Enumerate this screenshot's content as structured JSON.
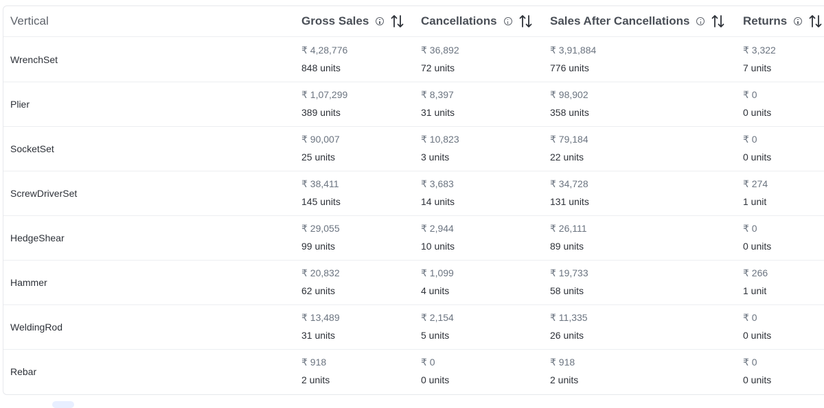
{
  "table": {
    "headers": {
      "vertical": "Vertical",
      "gross_sales": "Gross Sales",
      "cancellations": "Cancellations",
      "sales_after_cancellations": "Sales After Cancellations",
      "returns": "Returns"
    },
    "rows": [
      {
        "vertical": "WrenchSet",
        "gross_amount": "₹ 4,28,776",
        "gross_units": "848 units",
        "cancel_amount": "₹ 36,892",
        "cancel_units": "72 units",
        "after_amount": "₹ 3,91,884",
        "after_units": "776 units",
        "returns_amount": "₹ 3,322",
        "returns_units": "7 units"
      },
      {
        "vertical": "Plier",
        "gross_amount": "₹ 1,07,299",
        "gross_units": "389 units",
        "cancel_amount": "₹ 8,397",
        "cancel_units": "31 units",
        "after_amount": "₹ 98,902",
        "after_units": "358 units",
        "returns_amount": "₹ 0",
        "returns_units": "0 units"
      },
      {
        "vertical": "SocketSet",
        "gross_amount": "₹ 90,007",
        "gross_units": "25 units",
        "cancel_amount": "₹ 10,823",
        "cancel_units": "3 units",
        "after_amount": "₹ 79,184",
        "after_units": "22 units",
        "returns_amount": "₹ 0",
        "returns_units": "0 units"
      },
      {
        "vertical": "ScrewDriverSet",
        "gross_amount": "₹ 38,411",
        "gross_units": "145 units",
        "cancel_amount": "₹ 3,683",
        "cancel_units": "14 units",
        "after_amount": "₹ 34,728",
        "after_units": "131 units",
        "returns_amount": "₹ 274",
        "returns_units": "1 unit"
      },
      {
        "vertical": "HedgeShear",
        "gross_amount": "₹ 29,055",
        "gross_units": "99 units",
        "cancel_amount": "₹ 2,944",
        "cancel_units": "10 units",
        "after_amount": "₹ 26,111",
        "after_units": "89 units",
        "returns_amount": "₹ 0",
        "returns_units": "0 units"
      },
      {
        "vertical": "Hammer",
        "gross_amount": "₹ 20,832",
        "gross_units": "62 units",
        "cancel_amount": "₹ 1,099",
        "cancel_units": "4 units",
        "after_amount": "₹ 19,733",
        "after_units": "58 units",
        "returns_amount": "₹ 266",
        "returns_units": "1 unit"
      },
      {
        "vertical": "WeldingRod",
        "gross_amount": "₹ 13,489",
        "gross_units": "31 units",
        "cancel_amount": "₹ 2,154",
        "cancel_units": "5 units",
        "after_amount": "₹ 11,335",
        "after_units": "26 units",
        "returns_amount": "₹ 0",
        "returns_units": "0 units"
      },
      {
        "vertical": "Rebar",
        "gross_amount": "₹ 918",
        "gross_units": "2 units",
        "cancel_amount": "₹ 0",
        "cancel_units": "0 units",
        "after_amount": "₹ 918",
        "after_units": "2 units",
        "returns_amount": "₹ 0",
        "returns_units": "0 units"
      }
    ]
  },
  "icons": {
    "info": "info-icon",
    "sort": "sort-arrows-icon"
  },
  "colors": {
    "amount_text": "#6b7480",
    "units_text": "#2d3138",
    "header_text": "#4a4f57",
    "border": "#e6e8ec"
  }
}
